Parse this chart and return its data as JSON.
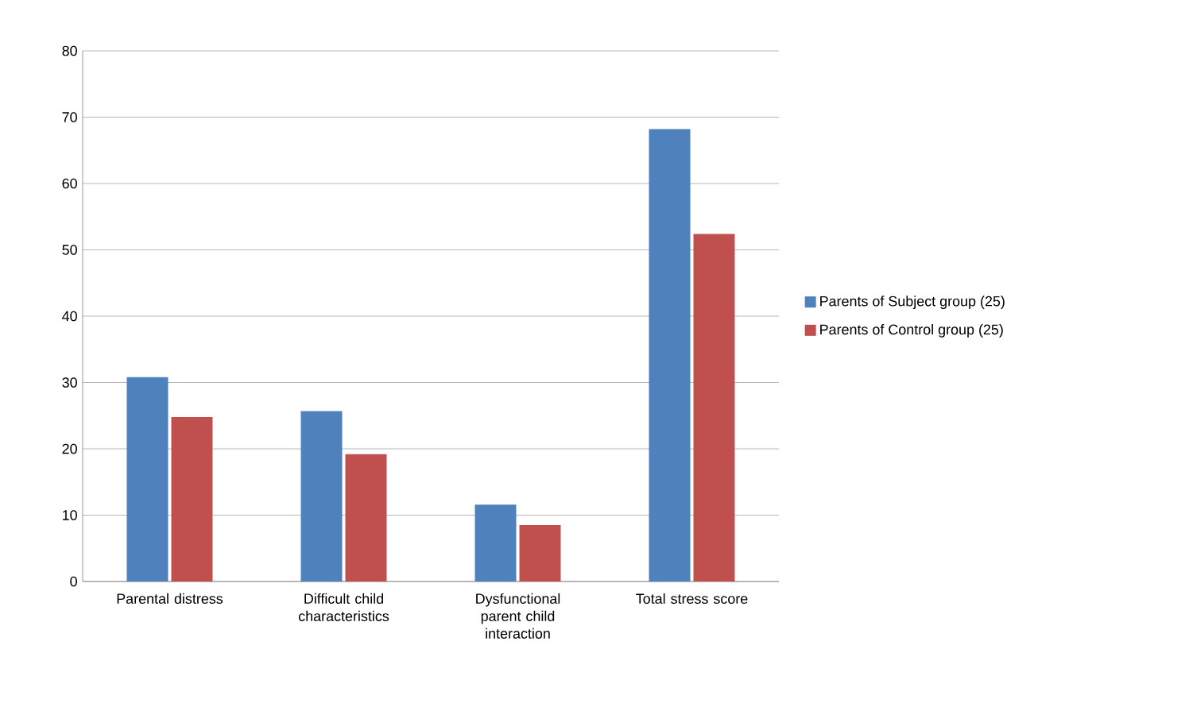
{
  "chart_data": {
    "type": "bar",
    "categories": [
      "Parental distress",
      "Difficult child characteristics",
      "Dysfunctional parent child interaction",
      "Total stress score"
    ],
    "series": [
      {
        "name": "Parents of Subject group (25)",
        "color": "#4f81bd",
        "values": [
          30.8,
          25.7,
          11.6,
          68.2
        ]
      },
      {
        "name": "Parents of Control group (25)",
        "color": "#c0504d",
        "values": [
          24.8,
          19.2,
          8.5,
          52.4
        ]
      }
    ],
    "ylim": [
      0,
      80
    ],
    "yticks": [
      0,
      10,
      20,
      30,
      40,
      50,
      60,
      70,
      80
    ],
    "grid": "y",
    "legend": "right"
  }
}
